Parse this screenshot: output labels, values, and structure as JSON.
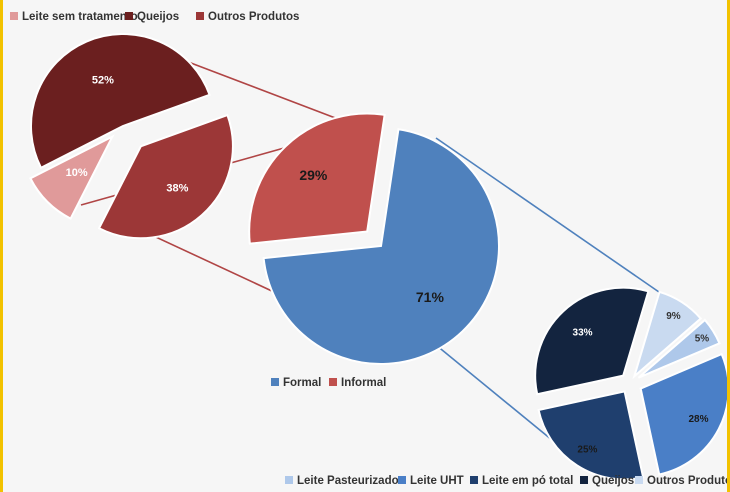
{
  "chart_data": [
    {
      "type": "pie",
      "title": "",
      "legend_position": "top-left",
      "categories": [
        "Leite sem tratamento",
        "Queijos",
        "Outros Produtos"
      ],
      "values": [
        10,
        52,
        38
      ],
      "labels": [
        "10%",
        "52%",
        "38%"
      ],
      "colors": [
        "#e09a9a",
        "#6b1f1f",
        "#9c3737"
      ]
    },
    {
      "type": "pie",
      "title": "",
      "legend_position": "bottom",
      "categories": [
        "Formal",
        "Informal"
      ],
      "values": [
        71,
        29
      ],
      "labels": [
        "71%",
        "29%"
      ],
      "colors": [
        "#4f81bd",
        "#c0504d"
      ]
    },
    {
      "type": "pie",
      "title": "",
      "legend_position": "bottom",
      "categories": [
        "Leite Pasteurizado",
        "Leite UHT",
        "Leite em pó total",
        "Queijos",
        "Outros Produtos"
      ],
      "values": [
        5,
        28,
        25,
        33,
        9
      ],
      "labels": [
        "5%",
        "28%",
        "25%",
        "33%",
        "9%"
      ],
      "colors": [
        "#aec8ea",
        "#4a7fc7",
        "#1f3f6e",
        "#13243f",
        "#c9daf0"
      ]
    }
  ]
}
